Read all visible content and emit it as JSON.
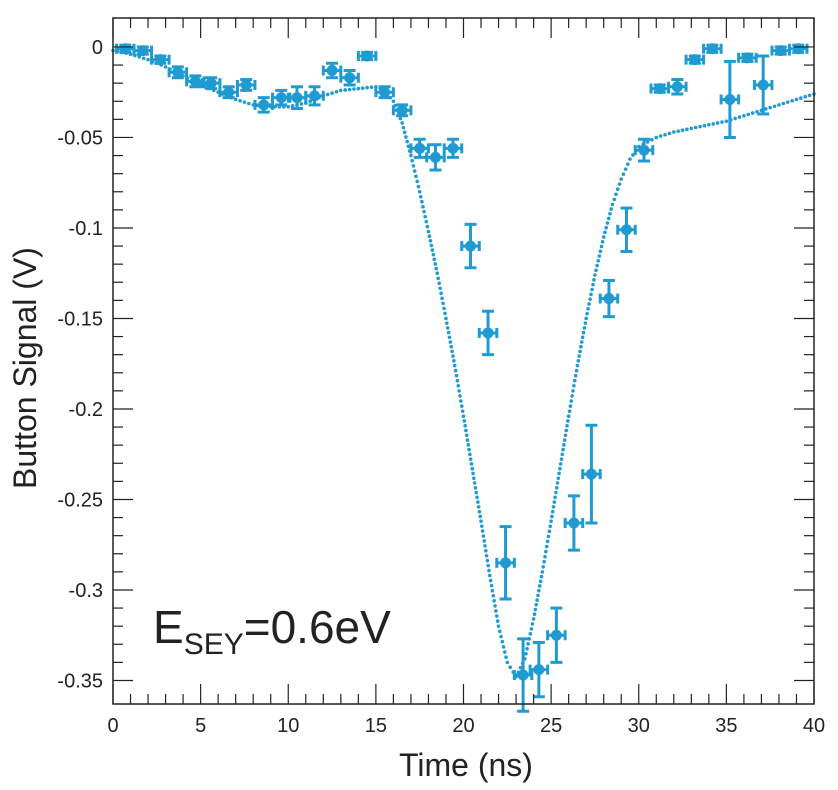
{
  "chart_data": {
    "type": "scatter",
    "title": "",
    "xlabel": "Time (ns)",
    "ylabel": "Button Signal (V)",
    "xlim": [
      0,
      40
    ],
    "ylim": [
      -0.363,
      0.016
    ],
    "x_ticks": [
      0,
      5,
      10,
      15,
      20,
      25,
      30,
      35,
      40
    ],
    "x_tick_labels": [
      "0",
      "5",
      "10",
      "15",
      "20",
      "25",
      "30",
      "35",
      "40"
    ],
    "y_ticks": [
      0,
      -0.05,
      -0.1,
      -0.15,
      -0.2,
      -0.25,
      -0.3,
      -0.35
    ],
    "y_tick_labels": [
      "0",
      "-0.05",
      "-0.1",
      "-0.15",
      "-0.2",
      "-0.25",
      "-0.3",
      "-0.35"
    ],
    "grid": false,
    "legend": "none",
    "color": "#1f9bd1",
    "annotation": {
      "base": "E",
      "subscript": "SEY",
      "rest": "=0.6eV"
    },
    "measurement": {
      "x": [
        0.7,
        1.7,
        2.7,
        3.7,
        4.7,
        5.6,
        6.6,
        7.6,
        8.6,
        9.6,
        10.5,
        11.5,
        12.5,
        13.5,
        14.5,
        15.5,
        16.5,
        17.5,
        18.4,
        19.4,
        20.4,
        21.4,
        22.4,
        23.4,
        24.3,
        25.3,
        26.3,
        27.3,
        28.3,
        29.3,
        30.3,
        31.2,
        32.2,
        33.2,
        34.2,
        35.2,
        36.2,
        37.1,
        38.1,
        39.1
      ],
      "y": [
        -0.001,
        -0.002,
        -0.007,
        -0.014,
        -0.019,
        -0.02,
        -0.025,
        -0.021,
        -0.032,
        -0.028,
        -0.028,
        -0.027,
        -0.013,
        -0.017,
        -0.005,
        -0.025,
        -0.035,
        -0.056,
        -0.061,
        -0.056,
        -0.11,
        -0.158,
        -0.285,
        -0.347,
        -0.344,
        -0.325,
        -0.263,
        -0.236,
        -0.139,
        -0.101,
        -0.057,
        -0.023,
        -0.022,
        -0.007,
        -0.001,
        -0.029,
        -0.006,
        -0.021,
        -0.002,
        -0.001
      ],
      "x_err": [
        0.5,
        0.5,
        0.5,
        0.5,
        0.5,
        0.5,
        0.5,
        0.5,
        0.5,
        0.5,
        0.5,
        0.5,
        0.5,
        0.5,
        0.5,
        0.5,
        0.5,
        0.5,
        0.5,
        0.5,
        0.5,
        0.5,
        0.5,
        0.5,
        0.5,
        0.5,
        0.5,
        0.5,
        0.5,
        0.5,
        0.5,
        0.5,
        0.5,
        0.5,
        0.5,
        0.5,
        0.5,
        0.5,
        0.5,
        0.5
      ],
      "y_err": [
        0.002,
        0.002,
        0.002,
        0.003,
        0.003,
        0.003,
        0.003,
        0.003,
        0.004,
        0.004,
        0.006,
        0.005,
        0.004,
        0.004,
        0.002,
        0.003,
        0.003,
        0.005,
        0.007,
        0.005,
        0.012,
        0.012,
        0.02,
        0.02,
        0.015,
        0.015,
        0.015,
        0.027,
        0.01,
        0.012,
        0.006,
        0.002,
        0.004,
        0.002,
        0.002,
        0.021,
        0.002,
        0.016,
        0.002,
        0.002
      ]
    },
    "simulation": {
      "x": [
        0,
        1,
        2,
        3,
        4,
        5,
        6,
        7,
        8,
        9,
        10,
        11,
        12,
        13,
        14,
        15,
        15.5,
        16,
        16.5,
        17,
        17.5,
        18,
        18.5,
        19,
        19.5,
        20,
        20.5,
        21,
        21.5,
        22,
        22.5,
        23,
        23.5,
        24,
        24.5,
        25,
        25.5,
        26,
        26.5,
        27,
        27.5,
        28,
        28.5,
        29,
        29.5,
        30,
        31,
        32,
        33,
        34,
        35,
        36,
        37,
        38,
        39,
        40
      ],
      "y": [
        -0.002,
        -0.004,
        -0.007,
        -0.011,
        -0.016,
        -0.021,
        -0.025,
        -0.029,
        -0.032,
        -0.033,
        -0.033,
        -0.031,
        -0.027,
        -0.024,
        -0.023,
        -0.022,
        -0.024,
        -0.03,
        -0.042,
        -0.06,
        -0.08,
        -0.102,
        -0.125,
        -0.15,
        -0.176,
        -0.204,
        -0.233,
        -0.262,
        -0.292,
        -0.32,
        -0.34,
        -0.348,
        -0.338,
        -0.316,
        -0.29,
        -0.262,
        -0.233,
        -0.204,
        -0.176,
        -0.15,
        -0.126,
        -0.105,
        -0.087,
        -0.073,
        -0.062,
        -0.055,
        -0.05,
        -0.047,
        -0.045,
        -0.043,
        -0.041,
        -0.038,
        -0.035,
        -0.032,
        -0.029,
        -0.026
      ]
    }
  }
}
